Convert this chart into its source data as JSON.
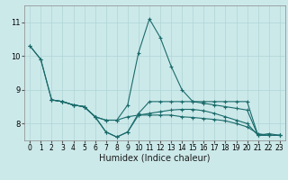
{
  "xlabel": "Humidex (Indice chaleur)",
  "xlim": [
    -0.5,
    23.5
  ],
  "ylim": [
    7.5,
    11.5
  ],
  "yticks": [
    8,
    9,
    10,
    11
  ],
  "xticks": [
    0,
    1,
    2,
    3,
    4,
    5,
    6,
    7,
    8,
    9,
    10,
    11,
    12,
    13,
    14,
    15,
    16,
    17,
    18,
    19,
    20,
    21,
    22,
    23
  ],
  "bg_color": "#cce9ea",
  "grid_color": "#aed4d5",
  "line_color": "#1a6b6b",
  "line1_x": [
    0,
    1,
    2,
    3,
    4,
    5,
    6,
    7,
    8,
    9,
    10,
    11,
    12,
    13,
    14,
    15,
    16,
    17,
    18,
    19,
    20,
    21,
    22,
    23
  ],
  "line1_y": [
    10.3,
    9.9,
    8.7,
    8.65,
    8.55,
    8.5,
    8.2,
    8.1,
    8.1,
    8.55,
    10.1,
    11.1,
    10.55,
    9.7,
    9.0,
    8.65,
    8.6,
    8.55,
    8.5,
    8.45,
    8.4,
    7.65,
    7.7,
    7.65
  ],
  "line2_x": [
    0,
    1,
    2,
    3,
    4,
    5,
    6,
    7,
    8,
    9,
    10,
    11,
    12,
    13,
    14,
    15,
    16,
    17,
    18,
    19,
    20,
    21,
    22,
    23
  ],
  "line2_y": [
    10.3,
    9.9,
    8.7,
    8.65,
    8.55,
    8.5,
    8.2,
    8.1,
    8.1,
    8.2,
    8.25,
    8.25,
    8.25,
    8.25,
    8.2,
    8.18,
    8.15,
    8.12,
    8.08,
    8.0,
    7.9,
    7.7,
    7.65,
    7.65
  ],
  "line3_x": [
    2,
    3,
    4,
    5,
    6,
    7,
    8,
    9,
    10,
    11,
    12,
    13,
    14,
    15,
    16,
    17,
    18,
    19,
    20,
    21,
    22,
    23
  ],
  "line3_y": [
    8.7,
    8.65,
    8.55,
    8.5,
    8.2,
    7.75,
    7.6,
    7.75,
    8.3,
    8.65,
    8.65,
    8.65,
    8.65,
    8.65,
    8.65,
    8.65,
    8.65,
    8.65,
    8.65,
    7.65,
    7.65,
    7.65
  ],
  "line4_x": [
    2,
    3,
    4,
    5,
    6,
    7,
    8,
    9,
    10,
    11,
    12,
    13,
    14,
    15,
    16,
    17,
    18,
    19,
    20,
    21,
    22,
    23
  ],
  "line4_y": [
    8.7,
    8.65,
    8.55,
    8.5,
    8.2,
    7.75,
    7.6,
    7.75,
    8.25,
    8.3,
    8.35,
    8.4,
    8.42,
    8.42,
    8.38,
    8.3,
    8.2,
    8.1,
    8.0,
    7.65,
    7.65,
    7.65
  ]
}
